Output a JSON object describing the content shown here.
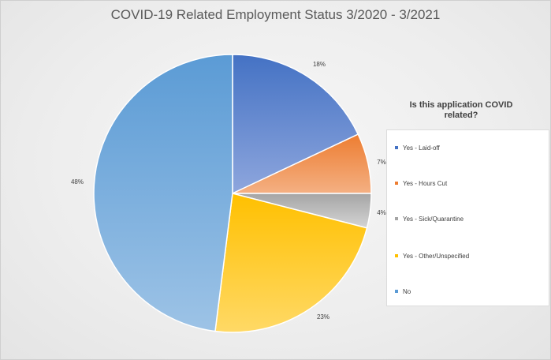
{
  "chart_data": {
    "type": "pie",
    "title": "COVID-19 Related Employment Status 3/2020 - 3/2021",
    "legend_title": "Is this application COVID related?",
    "legend_position": "right",
    "slices": [
      {
        "label": "Yes - Laid-off",
        "value": 18,
        "display": "18%",
        "color": "#4472c4",
        "color_light": "#8ea6dd"
      },
      {
        "label": "Yes - Hours Cut",
        "value": 7,
        "display": "7%",
        "color": "#ed7d31",
        "color_light": "#f4b083"
      },
      {
        "label": "Yes - Sick/Quarantine",
        "value": 4,
        "display": "4%",
        "color": "#a5a5a5",
        "color_light": "#d4d4d4"
      },
      {
        "label": "Yes - Other/Unspecified",
        "value": 23,
        "display": "23%",
        "color": "#ffc000",
        "color_light": "#ffd966"
      },
      {
        "label": "No",
        "value": 48,
        "display": "48%",
        "color": "#5b9bd5",
        "color_light": "#9dc3e6"
      }
    ]
  }
}
